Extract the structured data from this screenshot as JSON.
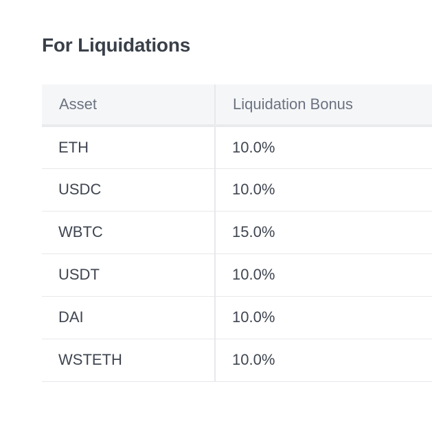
{
  "section": {
    "title": "For Liquidations"
  },
  "table": {
    "headers": [
      "Asset",
      "Liquidation Bonus"
    ],
    "rows": [
      {
        "asset": "ETH",
        "bonus": "10.0%"
      },
      {
        "asset": "USDC",
        "bonus": "10.0%"
      },
      {
        "asset": "WBTC",
        "bonus": "15.0%"
      },
      {
        "asset": "USDT",
        "bonus": "10.0%"
      },
      {
        "asset": "DAI",
        "bonus": "10.0%"
      },
      {
        "asset": "WSTETH",
        "bonus": "10.0%"
      }
    ]
  }
}
